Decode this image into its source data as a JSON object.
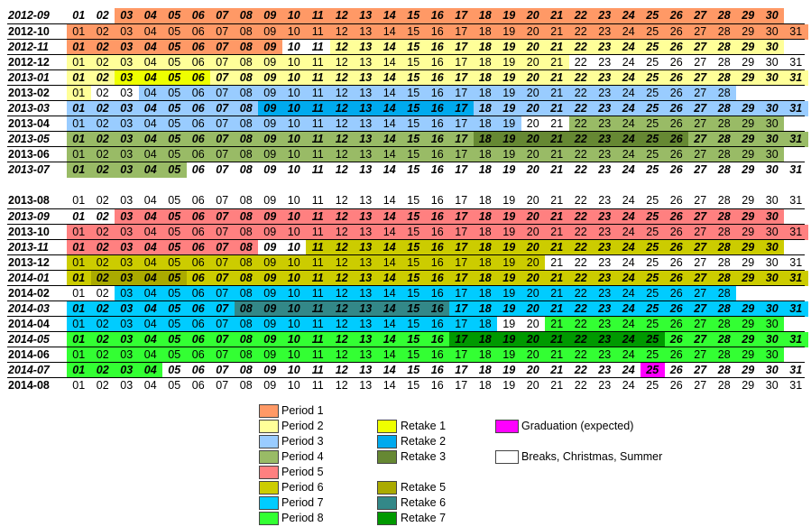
{
  "colors": {
    "p1": "#ff9966",
    "p2": "#ffff99",
    "p3": "#99ccff",
    "p4": "#99bb66",
    "p5": "#ff8080",
    "p6": "#cccc00",
    "p7": "#00ccff",
    "p8": "#33ff33",
    "r1": "#eeff00",
    "r2": "#00aaee",
    "r3": "#668833",
    "r5": "#aaaa00",
    "r6": "#338888",
    "r7": "#009900",
    "grad": "#ff00ff",
    "break": "#ffffff"
  },
  "legend": [
    {
      "key": "p1",
      "label": "Period 1"
    },
    {
      "key": "p2",
      "label": "Period 2"
    },
    {
      "key": "p3",
      "label": "Period 3"
    },
    {
      "key": "p4",
      "label": "Period 4"
    },
    {
      "key": "p5",
      "label": "Period 5"
    },
    {
      "key": "p6",
      "label": "Period 6"
    },
    {
      "key": "p7",
      "label": "Period 7"
    },
    {
      "key": "p8",
      "label": "Period 8"
    },
    {
      "key": "r1",
      "label": "Retake 1"
    },
    {
      "key": "r2",
      "label": "Retake 2"
    },
    {
      "key": "r3",
      "label": "Retake 3"
    },
    {
      "key": "r5",
      "label": "Retake 5"
    },
    {
      "key": "r6",
      "label": "Retake 6"
    },
    {
      "key": "r7",
      "label": "Retake 7"
    },
    {
      "key": "grad",
      "label": "Graduation (expected)"
    },
    {
      "key": "break",
      "label": "Breaks, Christmas, Summer"
    }
  ],
  "months": [
    {
      "label": "2012-09",
      "days": 30,
      "italic_label": true,
      "spans": [
        [
          1,
          2,
          null,
          true
        ],
        [
          3,
          30,
          "p1",
          true
        ]
      ]
    },
    {
      "label": "2012-10",
      "days": 31,
      "italic_label": false,
      "spans": [
        [
          1,
          31,
          "p1",
          false
        ]
      ]
    },
    {
      "label": "2012-11",
      "days": 30,
      "italic_label": true,
      "spans": [
        [
          1,
          9,
          "p1",
          true
        ],
        [
          10,
          11,
          null,
          true
        ],
        [
          12,
          30,
          "p2",
          true
        ]
      ]
    },
    {
      "label": "2012-12",
      "days": 31,
      "italic_label": false,
      "spans": [
        [
          1,
          21,
          "p2",
          false
        ],
        [
          22,
          31,
          null,
          false
        ]
      ]
    },
    {
      "label": "2013-01",
      "days": 31,
      "italic_label": true,
      "spans": [
        [
          1,
          2,
          "p2",
          true
        ],
        [
          3,
          6,
          "r1",
          true
        ],
        [
          7,
          31,
          "p2",
          true
        ]
      ]
    },
    {
      "label": "2013-02",
      "days": 28,
      "italic_label": false,
      "spans": [
        [
          1,
          1,
          "p2",
          false
        ],
        [
          2,
          3,
          null,
          false
        ],
        [
          4,
          28,
          "p3",
          false
        ]
      ]
    },
    {
      "label": "2013-03",
      "days": 31,
      "italic_label": true,
      "spans": [
        [
          1,
          8,
          "p3",
          true
        ],
        [
          9,
          17,
          "r2",
          true
        ],
        [
          18,
          30,
          "p3",
          true
        ],
        [
          31,
          31,
          "p3",
          true
        ]
      ]
    },
    {
      "label": "2013-04",
      "days": 30,
      "italic_label": false,
      "spans": [
        [
          1,
          19,
          "p3",
          false
        ],
        [
          20,
          21,
          null,
          false
        ],
        [
          22,
          30,
          "p4",
          false
        ]
      ]
    },
    {
      "label": "2013-05",
      "days": 31,
      "italic_label": true,
      "spans": [
        [
          1,
          17,
          "p4",
          true
        ],
        [
          18,
          26,
          "r3",
          true
        ],
        [
          27,
          31,
          "p4",
          true
        ]
      ]
    },
    {
      "label": "2013-06",
      "days": 30,
      "italic_label": false,
      "spans": [
        [
          1,
          30,
          "p4",
          false
        ]
      ]
    },
    {
      "label": "2013-07",
      "days": 31,
      "italic_label": true,
      "spans": [
        [
          1,
          5,
          "p4",
          true
        ],
        [
          6,
          31,
          null,
          true
        ]
      ]
    },
    {
      "label": "2013-08",
      "days": 31,
      "italic_label": false,
      "spans": [
        [
          1,
          31,
          null,
          false
        ]
      ]
    },
    {
      "label": "2013-09",
      "days": 30,
      "italic_label": true,
      "spans": [
        [
          1,
          2,
          null,
          true
        ],
        [
          3,
          30,
          "p5",
          true
        ]
      ]
    },
    {
      "label": "2013-10",
      "days": 31,
      "italic_label": false,
      "spans": [
        [
          1,
          31,
          "p5",
          false
        ]
      ]
    },
    {
      "label": "2013-11",
      "days": 30,
      "italic_label": true,
      "spans": [
        [
          1,
          8,
          "p5",
          true
        ],
        [
          9,
          10,
          null,
          true
        ],
        [
          11,
          30,
          "p6",
          true
        ]
      ]
    },
    {
      "label": "2013-12",
      "days": 31,
      "italic_label": false,
      "spans": [
        [
          1,
          20,
          "p6",
          false
        ],
        [
          21,
          31,
          null,
          false
        ]
      ]
    },
    {
      "label": "2014-01",
      "days": 31,
      "italic_label": true,
      "spans": [
        [
          1,
          1,
          "p6",
          true
        ],
        [
          2,
          5,
          "r5",
          true
        ],
        [
          6,
          31,
          "p6",
          true
        ]
      ]
    },
    {
      "label": "2014-02",
      "days": 28,
      "italic_label": false,
      "spans": [
        [
          1,
          2,
          null,
          false
        ],
        [
          3,
          28,
          "p7",
          false
        ]
      ]
    },
    {
      "label": "2014-03",
      "days": 31,
      "italic_label": true,
      "spans": [
        [
          1,
          7,
          "p7",
          true
        ],
        [
          8,
          16,
          "r6",
          true
        ],
        [
          17,
          31,
          "p7",
          true
        ]
      ]
    },
    {
      "label": "2014-04",
      "days": 30,
      "italic_label": false,
      "spans": [
        [
          1,
          18,
          "p7",
          false
        ],
        [
          19,
          20,
          null,
          false
        ],
        [
          21,
          30,
          "p8",
          false
        ]
      ]
    },
    {
      "label": "2014-05",
      "days": 31,
      "italic_label": true,
      "spans": [
        [
          1,
          16,
          "p8",
          true
        ],
        [
          17,
          25,
          "r7",
          true
        ],
        [
          26,
          31,
          "p8",
          true
        ]
      ]
    },
    {
      "label": "2014-06",
      "days": 30,
      "italic_label": false,
      "spans": [
        [
          1,
          30,
          "p8",
          false
        ]
      ]
    },
    {
      "label": "2014-07",
      "days": 31,
      "italic_label": true,
      "spans": [
        [
          1,
          4,
          "p8",
          true
        ],
        [
          5,
          24,
          null,
          true
        ],
        [
          25,
          25,
          "grad",
          true
        ],
        [
          26,
          31,
          null,
          true
        ]
      ]
    },
    {
      "label": "2014-08",
      "days": 31,
      "italic_label": false,
      "spans": [
        [
          1,
          31,
          null,
          false
        ]
      ]
    }
  ]
}
